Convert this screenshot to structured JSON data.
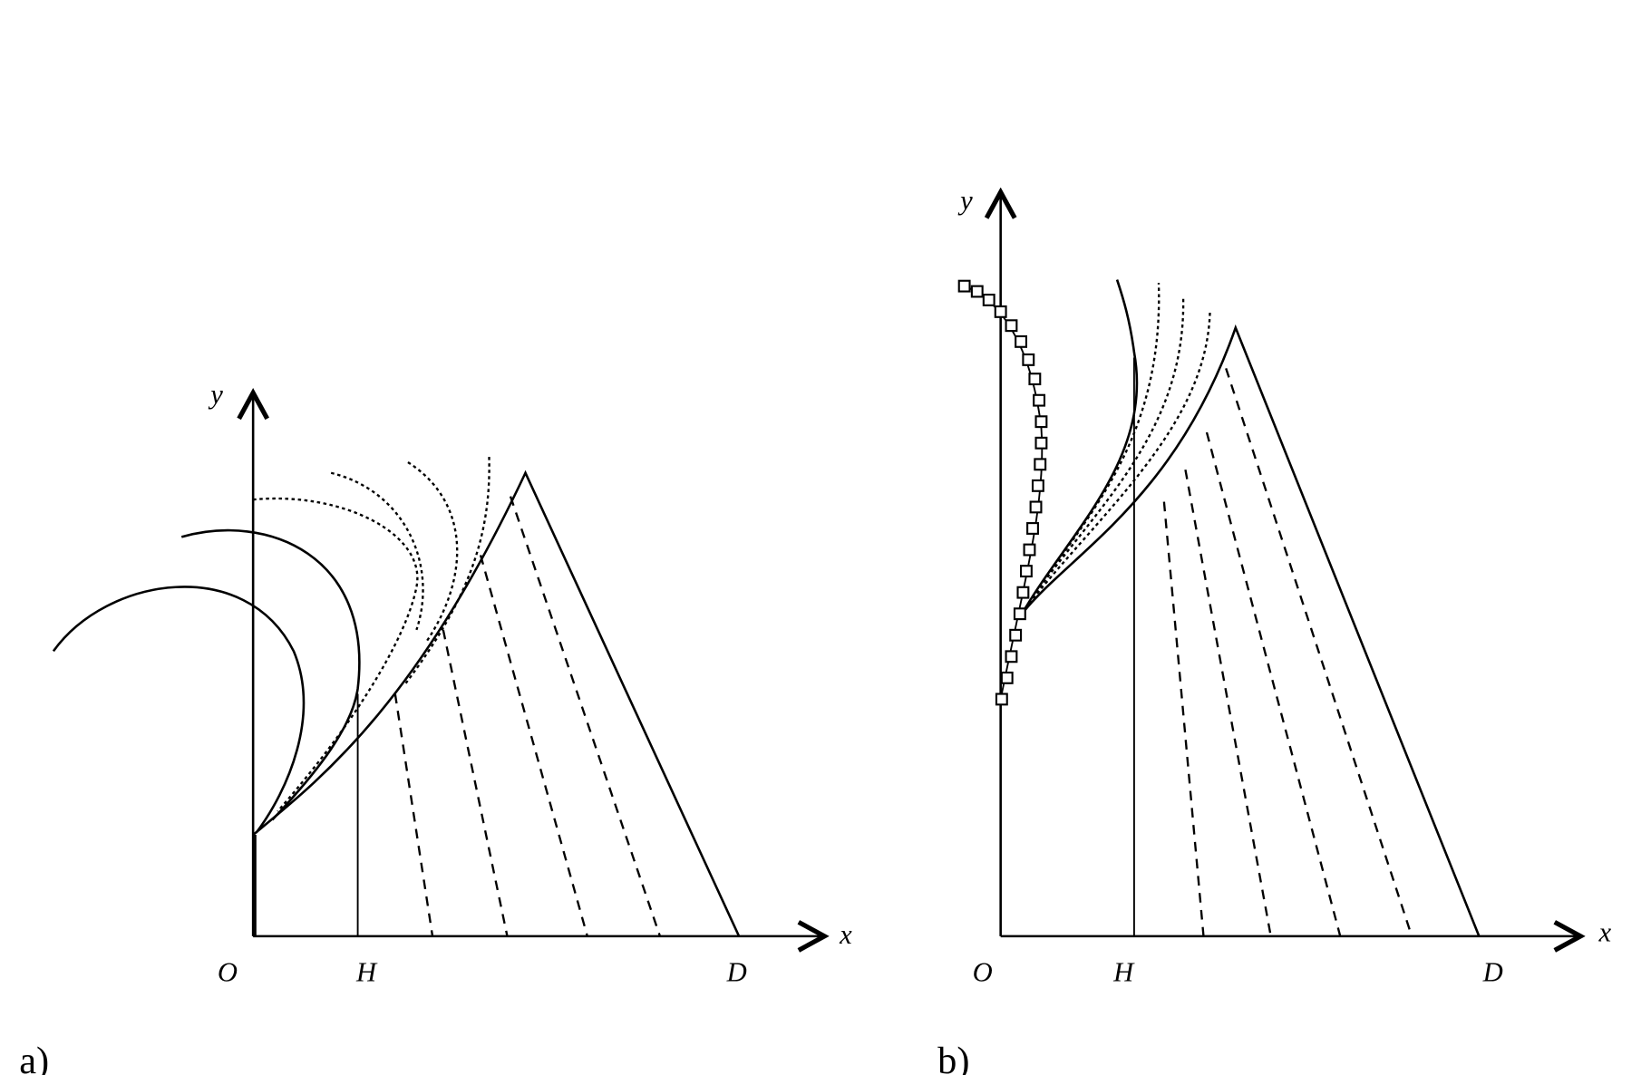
{
  "panels": [
    {
      "label": "a)",
      "axes": {
        "x": "x",
        "y": "y"
      },
      "points": {
        "origin": "O",
        "h": "H",
        "d": "D"
      }
    },
    {
      "label": "b)",
      "axes": {
        "x": "x",
        "y": "y"
      },
      "points": {
        "origin": "O",
        "h": "H",
        "d": "D"
      }
    }
  ]
}
